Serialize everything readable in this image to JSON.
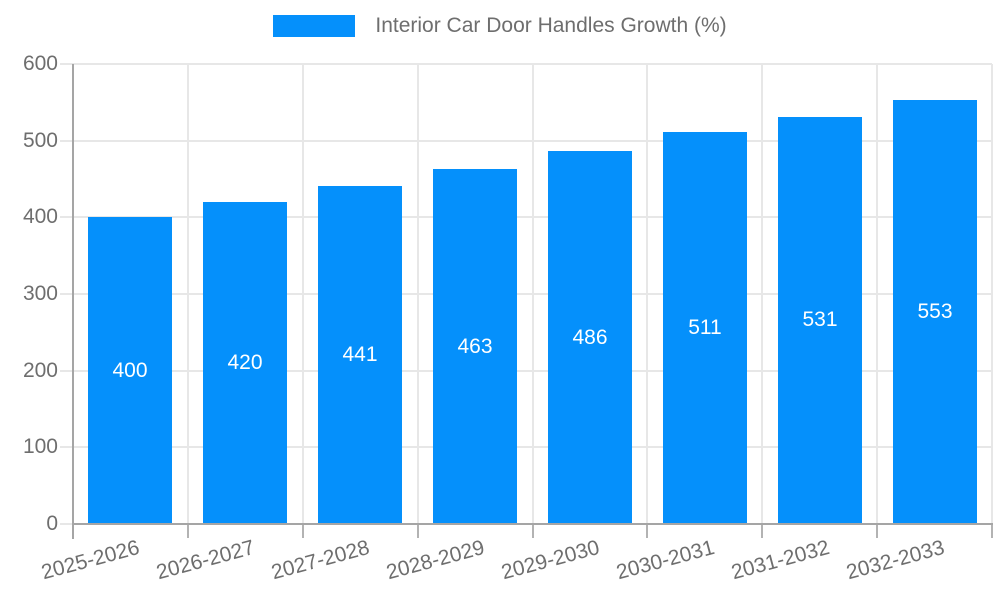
{
  "legend": {
    "label": "Interior Car Door Handles Growth (%)",
    "swatch_color": "#0590fb"
  },
  "chart_data": {
    "type": "bar",
    "title": "Interior Car Door Handles Growth (%)",
    "categories": [
      "2025-2026",
      "2026-2027",
      "2027-2028",
      "2028-2029",
      "2029-2030",
      "2030-2031",
      "2031-2032",
      "2032-2033"
    ],
    "values": [
      400,
      420,
      441,
      463,
      486,
      511,
      531,
      553
    ],
    "xlabel": "",
    "ylabel": "",
    "ylim": [
      0,
      600
    ],
    "ytick_step": 100,
    "ytick_labels": [
      "0",
      "100",
      "200",
      "300",
      "400",
      "500",
      "600"
    ],
    "grid": true,
    "legend_position": "top-center",
    "x_label_rotation_deg": -15,
    "bar_color": "#0590fb",
    "value_label_color": "#ffffff",
    "grid_color": "#e7e7e7",
    "axis_color": "#a5a5a5",
    "x_tick_color": "#b3b3b3",
    "tick_label_color": "#6e6e6e"
  }
}
